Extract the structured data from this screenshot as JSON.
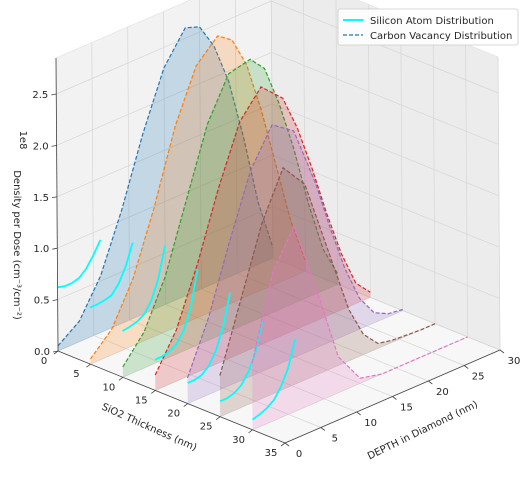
{
  "chart_data": {
    "type": "3d-line",
    "view": "3d-perspective",
    "x_axis": {
      "label": "SiO2 Thickness (nm)",
      "range": [
        0,
        35
      ],
      "ticks": [
        "0",
        "5",
        "10",
        "15",
        "20",
        "25",
        "30",
        "35"
      ]
    },
    "y_axis": {
      "label": "DEPTH in Diamond (nm)",
      "range": [
        0,
        30
      ],
      "ticks": [
        "0",
        "5",
        "10",
        "15",
        "20",
        "25",
        "30"
      ]
    },
    "z_axis": {
      "label": "Density per Dose (cm⁻³/cm⁻²)",
      "range": [
        0,
        2.85
      ],
      "ticks": [
        "0.0",
        "0.5",
        "1.0",
        "1.5",
        "2.0",
        "2.5"
      ],
      "multiplier": "1e8"
    },
    "legend": {
      "position": "top-right",
      "entries": [
        "Silicon Atom Distribution",
        "Carbon Vacancy Distribution"
      ]
    },
    "colors": {
      "silicon": "#00ffff",
      "vacancy_series": [
        "#1f77b4",
        "#ff7f0e",
        "#2ca02c",
        "#d62728",
        "#9467bd",
        "#8c564b",
        "#e377c2"
      ]
    },
    "grid": true,
    "sio2_thickness": [
      0,
      5,
      10,
      15,
      20,
      25,
      30
    ],
    "depth_points": [
      0,
      3,
      6,
      9,
      12,
      15,
      18,
      20,
      22,
      24,
      26,
      28,
      30
    ],
    "vacancy_series": [
      {
        "sio2": 0,
        "values": [
          0.05,
          0.2,
          0.55,
          1.1,
          1.75,
          2.3,
          2.6,
          2.55,
          2.3,
          1.9,
          1.3,
          0.6,
          0.1
        ]
      },
      {
        "sio2": 5,
        "values": [
          0.05,
          0.25,
          0.65,
          1.25,
          1.95,
          2.45,
          2.65,
          2.55,
          2.25,
          1.75,
          1.15,
          0.55,
          0.1
        ]
      },
      {
        "sio2": 10,
        "values": [
          0.1,
          0.35,
          0.8,
          1.45,
          2.1,
          2.5,
          2.55,
          2.4,
          2.0,
          1.5,
          0.9,
          0.4,
          0.1
        ]
      },
      {
        "sio2": 15,
        "values": [
          0.15,
          0.5,
          1.05,
          1.7,
          2.25,
          2.5,
          2.3,
          1.95,
          1.5,
          1.0,
          0.55,
          0.2,
          0.05
        ]
      },
      {
        "sio2": 20,
        "values": [
          0.25,
          0.75,
          1.4,
          2.0,
          2.35,
          2.2,
          1.6,
          1.1,
          0.65,
          0.3,
          0.1,
          0.03,
          0.01
        ]
      },
      {
        "sio2": 25,
        "values": [
          0.4,
          1.05,
          1.7,
          2.15,
          1.9,
          1.2,
          0.5,
          0.2,
          0.05,
          0.02,
          0.01,
          0.0,
          0.0
        ]
      },
      {
        "sio2": 30,
        "values": [
          0.65,
          1.45,
          1.8,
          1.1,
          0.35,
          0.05,
          0.0,
          0.0,
          0.0,
          0.0,
          0.0,
          0.0,
          0.0
        ]
      }
    ],
    "silicon_series": [
      {
        "sio2": 0,
        "values": [
          0.62,
          0.6,
          0.6,
          0.62,
          0.68,
          0.78,
          0.9
        ]
      },
      {
        "sio2": 5,
        "values": [
          0.55,
          0.55,
          0.56,
          0.58,
          0.66,
          0.8,
          1.0
        ]
      },
      {
        "sio2": 10,
        "values": [
          0.45,
          0.46,
          0.48,
          0.52,
          0.62,
          0.8,
          1.1
        ]
      },
      {
        "sio2": 15,
        "values": [
          0.3,
          0.3,
          0.32,
          0.36,
          0.46,
          0.65,
          1.0
        ]
      },
      {
        "sio2": 20,
        "values": [
          0.2,
          0.2,
          0.22,
          0.28,
          0.4,
          0.6,
          0.9
        ]
      },
      {
        "sio2": 25,
        "values": [
          0.15,
          0.15,
          0.17,
          0.22,
          0.32,
          0.48,
          0.75
        ]
      },
      {
        "sio2": 30,
        "values": [
          0.1,
          0.12,
          0.15,
          0.2,
          0.3,
          0.45,
          0.7
        ]
      }
    ],
    "silicon_depth_points": [
      0,
      1,
      2,
      3,
      4,
      5,
      6
    ]
  }
}
